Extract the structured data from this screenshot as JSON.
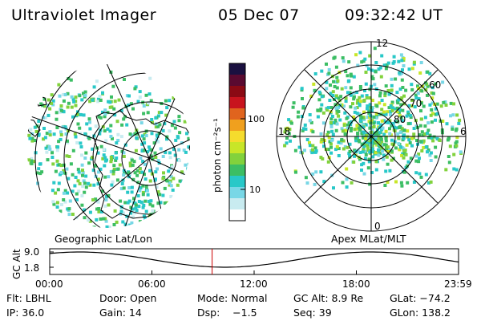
{
  "header": {
    "title": "Ultraviolet Imager",
    "date": "05 Dec 07",
    "time": "09:32:42 UT"
  },
  "left_panel": {
    "label": "Geographic Lat/Lon"
  },
  "right_panel": {
    "label": "Apex MLat/MLT",
    "mlt_labels": {
      "top": "12",
      "left": "18",
      "right": "6",
      "bottom": "0"
    },
    "lat_labels": [
      "60",
      "70",
      "80"
    ]
  },
  "colorbar": {
    "unit_label": "photon cm⁻²s⁻¹",
    "ticks": [
      "100",
      "10"
    ],
    "scale": "log",
    "colors": [
      "#1a1040",
      "#5a0a30",
      "#8b0a14",
      "#c8141e",
      "#e0641e",
      "#f0a01e",
      "#f5dc2d",
      "#c8e628",
      "#82d23c",
      "#3cbe64",
      "#28c8c8",
      "#78d7e6",
      "#c8ebf0",
      "#ffffff"
    ]
  },
  "altitude_strip": {
    "axis_label": "GC Alt",
    "y_ticks": [
      "9.0",
      "1.8"
    ],
    "x_ticks": [
      "00:00",
      "06:00",
      "12:00",
      "18:00",
      "23:59"
    ],
    "marker_time": "09:32",
    "marker_color": "#cc0000"
  },
  "footer": {
    "rows": [
      [
        "Flt: LBHL",
        "Door: Open",
        "Mode: Normal",
        "GC Alt: 8.9 Re",
        "GLat: −74.2"
      ],
      [
        "IP: 36.0",
        "Gain: 14",
        "Dsp:    −1.5",
        "Seq: 39",
        "GLon: 138.2"
      ]
    ]
  }
}
